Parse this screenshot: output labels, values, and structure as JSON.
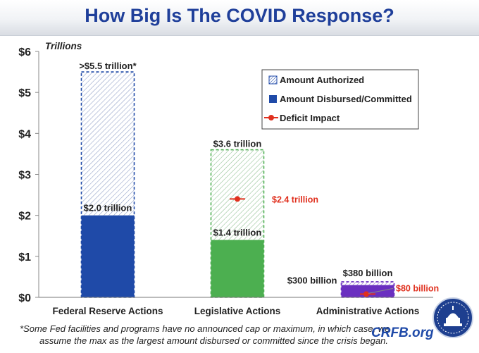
{
  "title": "How Big Is The COVID Response?",
  "footnote": {
    "line1": "*Some Fed facilities and programs have no announced cap or maximum, in which case, we",
    "line2": "assume the max as the largest amount disbursed or committed since the crisis began."
  },
  "brand": "CRFB.org",
  "chart_data": {
    "type": "bar",
    "title": "How Big Is The COVID Response?",
    "units_label": "Trillions",
    "ylim": [
      0,
      6
    ],
    "yticks": [
      0,
      1,
      2,
      3,
      4,
      5,
      6
    ],
    "ytick_labels": [
      "$0",
      "$1",
      "$2",
      "$3",
      "$4",
      "$5",
      "$6"
    ],
    "categories": [
      "Federal Reserve Actions",
      "Legislative Actions",
      "Administrative Actions"
    ],
    "series": [
      {
        "name": "Amount Authorized",
        "values": [
          5.5,
          3.6,
          0.38
        ],
        "labels": [
          ">$5.5 trillion*",
          "$3.6 trillion",
          "$380 billion"
        ]
      },
      {
        "name": "Amount Disbursed/Committed",
        "values": [
          2.0,
          1.4,
          0.3
        ],
        "labels": [
          "$2.0 trillion",
          "$1.4 trillion",
          "$300 billion"
        ]
      },
      {
        "name": "Deficit Impact",
        "values": [
          null,
          2.4,
          0.08
        ],
        "labels": [
          "",
          "$2.4 trillion",
          "$80 billion"
        ]
      }
    ],
    "colors": [
      "#1f4aa8",
      "#4caf50",
      "#6a2fc0"
    ],
    "deficit_color": "#e0301e",
    "legend": {
      "position": "top-right",
      "items": [
        "Amount Authorized",
        "Amount Disbursed/Committed",
        "Deficit Impact"
      ]
    }
  }
}
